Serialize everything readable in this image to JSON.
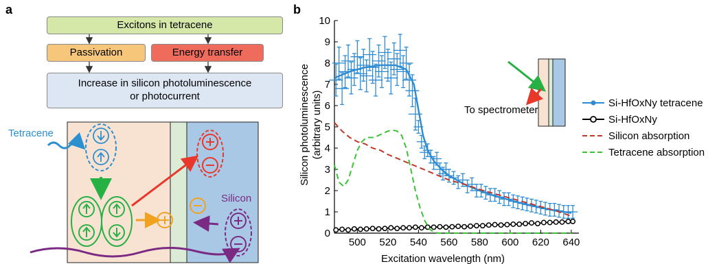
{
  "panel_a": {
    "letter": "a",
    "flow": {
      "top": "Excitons in tetracene",
      "left": "Passivation",
      "right": "Energy transfer",
      "bottom_line1": "Increase in silicon photoluminescence",
      "bottom_line2": "or photocurrent"
    },
    "labels": {
      "tetracene": "Tetracene",
      "silicon": "Silicon"
    },
    "colors": {
      "excitons_box": "#d5e8a8",
      "passivation_box": "#f6c77a",
      "energy_box": "#ef6b5c",
      "result_box": "#dde7f3",
      "tetracene_layer": "#f8e3d3",
      "interlayer": "#dcebd6",
      "silicon_layer": "#a9c8e6",
      "tetracene_color": "#2c8fd0",
      "green": "#27b144",
      "red": "#e8382b",
      "orange": "#f1a21f",
      "purple": "#7a2a82"
    }
  },
  "panel_b": {
    "letter": "b",
    "inset_label": "To spectrometer",
    "legend": [
      {
        "label": "Si-HfOxNy tetracene",
        "color": "#2b8ad1",
        "style": "line-dot"
      },
      {
        "label": "Si-HfOxNy",
        "color": "#000000",
        "style": "line-circle"
      },
      {
        "label": "Silicon absorption",
        "color": "#c0392b",
        "style": "dashed"
      },
      {
        "label": "Tetracene absorption",
        "color": "#39c234",
        "style": "dashed"
      }
    ]
  },
  "chart_data": {
    "type": "line",
    "xlabel": "Excitation wavelength (nm)",
    "ylabel_line1": "Silicon  photoluminescence",
    "ylabel_line2": "(arbitrary units)",
    "xlim": [
      485,
      645
    ],
    "ylim": [
      0,
      10
    ],
    "xticks": [
      500,
      520,
      540,
      560,
      580,
      600,
      620,
      640
    ],
    "yticks": [
      0,
      1,
      2,
      3,
      4,
      5,
      6,
      7,
      8,
      9,
      10
    ],
    "series": [
      {
        "name": "Si-HfOxNy tetracene",
        "style": "errorbar-line",
        "color": "#2b8ad1",
        "fit_x": [
          485,
          495,
          505,
          515,
          525,
          532,
          537,
          540,
          543,
          546,
          550,
          555,
          560,
          570,
          580,
          590,
          600,
          610,
          620,
          630,
          640
        ],
        "fit_y": [
          7.3,
          7.6,
          7.8,
          7.9,
          7.9,
          7.7,
          7.0,
          5.8,
          4.6,
          3.9,
          3.4,
          3.0,
          2.7,
          2.3,
          2.0,
          1.75,
          1.55,
          1.35,
          1.2,
          1.05,
          0.95
        ],
        "points": [
          [
            486,
            7.2
          ],
          [
            488,
            8.0
          ],
          [
            490,
            6.8
          ],
          [
            492,
            7.6
          ],
          [
            494,
            8.1
          ],
          [
            496,
            7.3
          ],
          [
            498,
            7.7
          ],
          [
            500,
            8.3
          ],
          [
            502,
            7.5
          ],
          [
            504,
            7.9
          ],
          [
            506,
            7.4
          ],
          [
            508,
            8.4
          ],
          [
            510,
            7.8
          ],
          [
            512,
            7.2
          ],
          [
            514,
            8.1
          ],
          [
            516,
            7.6
          ],
          [
            518,
            8.5
          ],
          [
            520,
            7.9
          ],
          [
            522,
            7.3
          ],
          [
            524,
            8.2
          ],
          [
            526,
            7.7
          ],
          [
            528,
            8.6
          ],
          [
            530,
            7.6
          ],
          [
            532,
            8.0
          ],
          [
            534,
            7.2
          ],
          [
            536,
            6.7
          ],
          [
            538,
            5.6
          ],
          [
            540,
            5.0
          ],
          [
            542,
            4.3
          ],
          [
            544,
            3.8
          ],
          [
            546,
            3.9
          ],
          [
            548,
            3.6
          ],
          [
            550,
            3.3
          ],
          [
            552,
            3.5
          ],
          [
            554,
            3.0
          ],
          [
            556,
            2.8
          ],
          [
            558,
            3.0
          ],
          [
            560,
            2.7
          ],
          [
            563,
            2.6
          ],
          [
            566,
            2.4
          ],
          [
            569,
            2.5
          ],
          [
            572,
            2.2
          ],
          [
            575,
            2.3
          ],
          [
            578,
            2.0
          ],
          [
            581,
            2.0
          ],
          [
            584,
            1.9
          ],
          [
            587,
            1.8
          ],
          [
            590,
            1.8
          ],
          [
            593,
            1.7
          ],
          [
            596,
            1.6
          ],
          [
            599,
            1.6
          ],
          [
            602,
            1.5
          ],
          [
            605,
            1.45
          ],
          [
            608,
            1.4
          ],
          [
            611,
            1.35
          ],
          [
            614,
            1.3
          ],
          [
            617,
            1.25
          ],
          [
            620,
            1.2
          ],
          [
            623,
            1.15
          ],
          [
            626,
            1.1
          ],
          [
            629,
            1.1
          ],
          [
            632,
            1.05
          ],
          [
            635,
            1.0
          ],
          [
            638,
            1.0
          ],
          [
            641,
            1.0
          ]
        ]
      },
      {
        "name": "Si-HfOxNy",
        "style": "line-open-circle",
        "color": "#000000",
        "x": [
          486,
          490,
          494,
          498,
          502,
          506,
          510,
          514,
          518,
          522,
          526,
          530,
          534,
          538,
          542,
          546,
          550,
          554,
          558,
          562,
          566,
          570,
          574,
          578,
          582,
          586,
          590,
          594,
          598,
          602,
          606,
          610,
          614,
          618,
          622,
          626,
          630,
          634,
          638,
          641
        ],
        "y": [
          0.15,
          0.18,
          0.15,
          0.2,
          0.18,
          0.2,
          0.22,
          0.2,
          0.22,
          0.25,
          0.22,
          0.25,
          0.25,
          0.28,
          0.25,
          0.28,
          0.28,
          0.3,
          0.28,
          0.3,
          0.32,
          0.3,
          0.33,
          0.35,
          0.35,
          0.38,
          0.4,
          0.38,
          0.4,
          0.42,
          0.42,
          0.45,
          0.48,
          0.45,
          0.5,
          0.5,
          0.52,
          0.52,
          0.55,
          0.55
        ]
      },
      {
        "name": "Silicon absorption",
        "style": "dashed",
        "color": "#c0392b",
        "x": [
          485,
          490,
          495,
          500,
          505,
          510,
          515,
          520,
          525,
          530,
          535,
          540,
          545,
          550,
          555,
          560,
          570,
          580,
          590,
          600,
          610,
          620,
          630,
          640
        ],
        "y": [
          5.2,
          4.8,
          4.5,
          4.3,
          4.2,
          4.0,
          3.9,
          3.7,
          3.55,
          3.4,
          3.25,
          3.1,
          2.95,
          2.8,
          2.65,
          2.5,
          2.3,
          2.05,
          1.85,
          1.65,
          1.45,
          1.25,
          1.05,
          0.8
        ]
      },
      {
        "name": "Tetracene absorption",
        "style": "dashed",
        "color": "#39c234",
        "x": [
          485,
          488,
          491,
          494,
          497,
          500,
          503,
          506,
          508,
          511,
          514,
          517,
          520,
          523,
          526,
          529,
          532,
          535,
          538,
          541,
          544,
          547,
          550,
          553,
          556,
          560,
          570,
          580,
          600,
          620,
          640
        ],
        "y": [
          3.2,
          2.4,
          2.2,
          2.5,
          3.2,
          3.9,
          4.3,
          4.5,
          4.5,
          4.5,
          4.6,
          4.7,
          4.8,
          4.85,
          4.8,
          4.6,
          4.0,
          3.0,
          2.0,
          1.2,
          0.6,
          0.2,
          0.05,
          0.0,
          0.0,
          0.0,
          0.0,
          0.0,
          0.0,
          0.0,
          0.0
        ]
      }
    ]
  }
}
